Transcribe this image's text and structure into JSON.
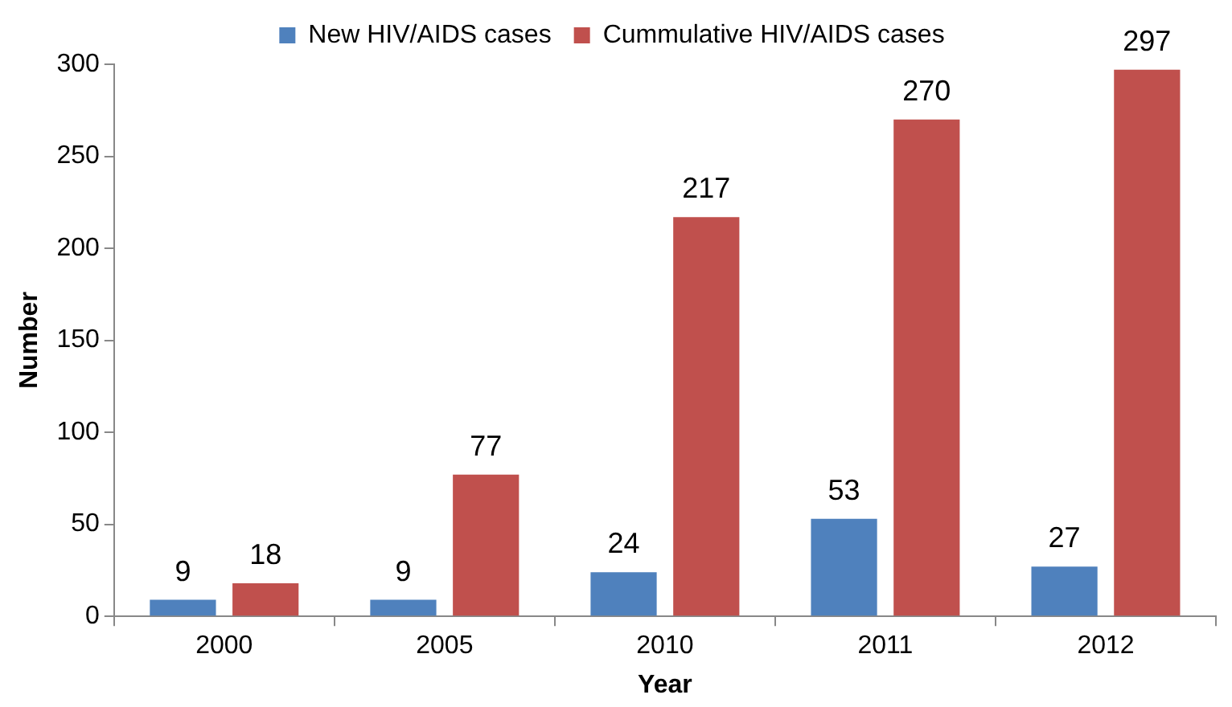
{
  "chart_data": {
    "type": "bar",
    "xlabel": "Year",
    "ylabel": "Number",
    "categories": [
      "2000",
      "2005",
      "2010",
      "2011",
      "2012"
    ],
    "series": [
      {
        "name": "New HIV/AIDS cases",
        "color": "#4f81bd",
        "values": [
          9,
          9,
          24,
          53,
          27
        ]
      },
      {
        "name": "Cummulative HIV/AIDS cases",
        "color": "#c0504d",
        "values": [
          18,
          77,
          217,
          270,
          297
        ]
      }
    ],
    "ylim": [
      0,
      300
    ],
    "yticks": [
      0,
      50,
      100,
      150,
      200,
      250,
      300
    ],
    "grid": false,
    "legend": "top",
    "data_labels": true
  }
}
